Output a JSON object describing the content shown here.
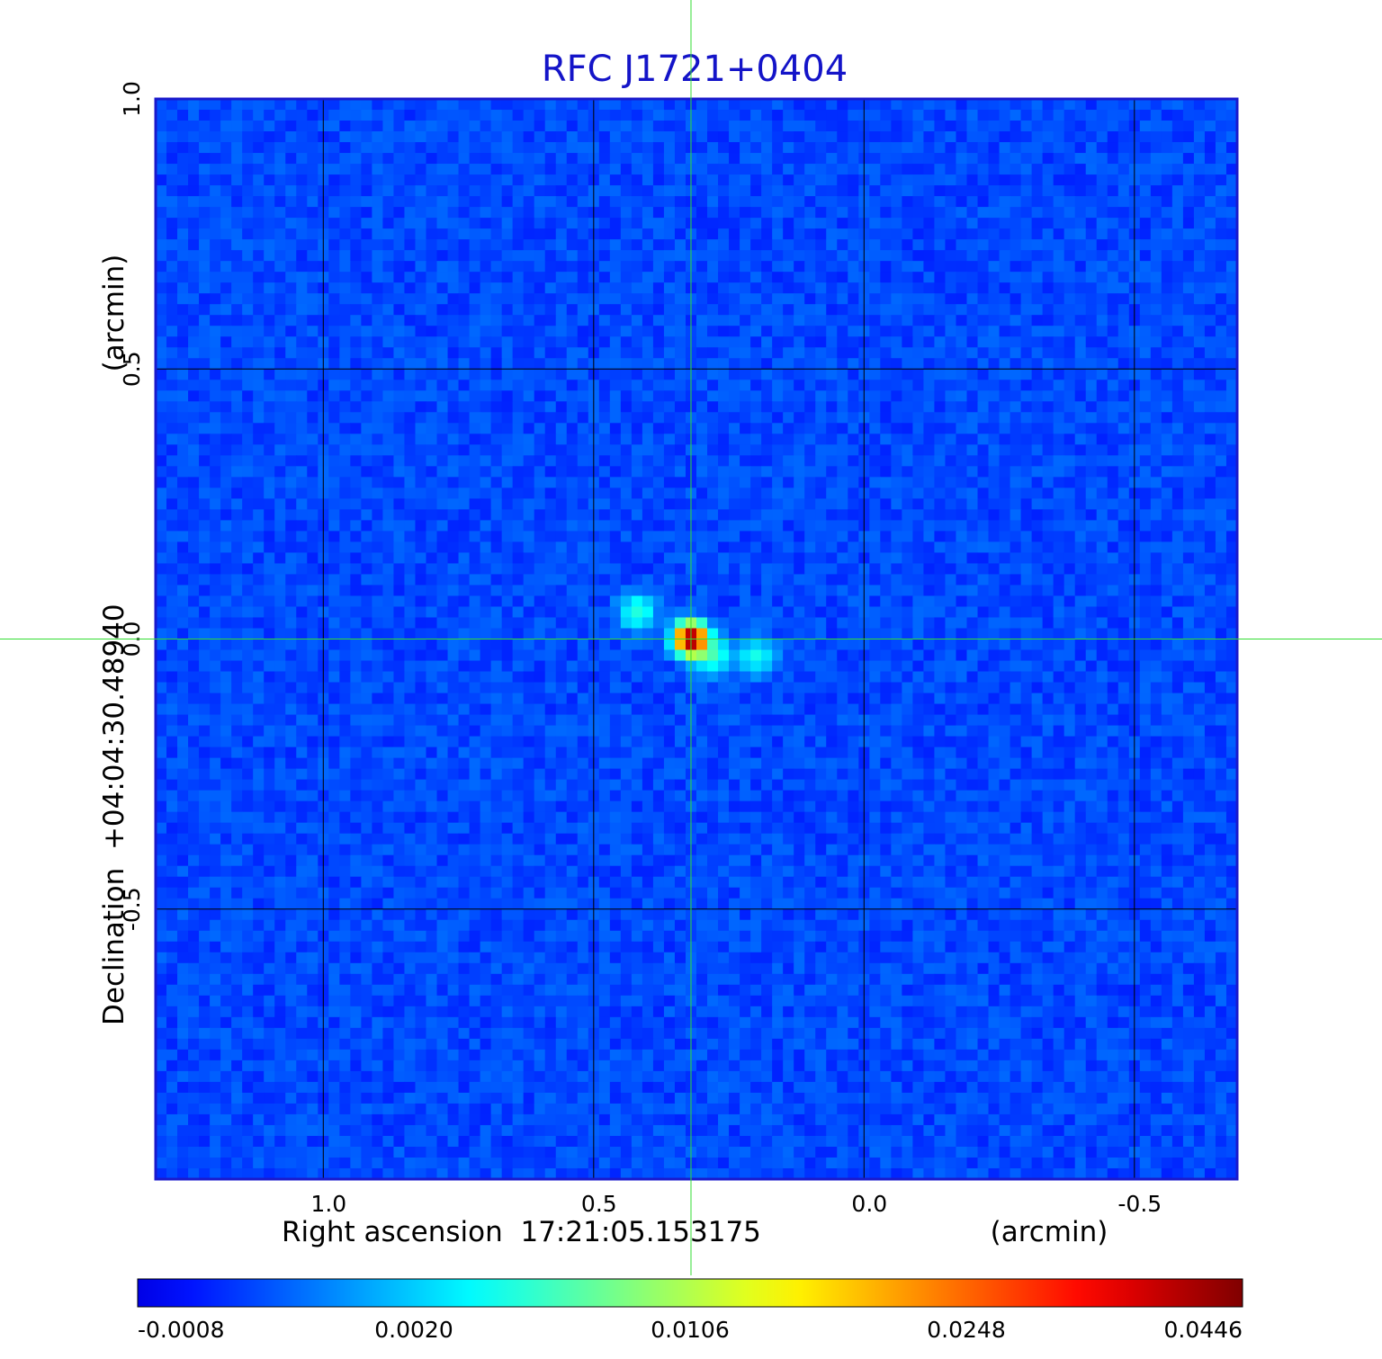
{
  "chart_data": {
    "type": "heatmap",
    "title": "RFC J1721+0404",
    "xlabel": "Right ascension  17:21:05.153175",
    "xlabel_unit": "(arcmin)",
    "ylabel": "Declination  +04:04:30.48940",
    "ylabel_unit": "(arcmin)",
    "x_ticks": [
      "1.0",
      "0.5",
      "0.0",
      "-0.5"
    ],
    "x_tick_values": [
      1.0,
      0.5,
      0.0,
      -0.5
    ],
    "y_ticks": [
      "1.0",
      "0.5",
      "0.0",
      "-0.5"
    ],
    "y_tick_values": [
      1.0,
      0.5,
      0.0,
      -0.5
    ],
    "xlim": [
      1.31,
      -0.69
    ],
    "ylim": [
      -1.0,
      1.0
    ],
    "grid": true,
    "crosshair": {
      "x": 0.32,
      "y": 0.0
    },
    "colormap": "jet",
    "colorbar": {
      "ticks": [
        "-0.0008",
        "0.0020",
        "0.0106",
        "0.0248",
        "0.0446"
      ],
      "tick_values": [
        -0.0008,
        0.002,
        0.0106,
        0.0248,
        0.0446
      ],
      "placement": "bottom"
    },
    "sources": [
      {
        "x": 0.32,
        "y": 0.0,
        "peak": 0.0446
      },
      {
        "x": 0.42,
        "y": 0.05,
        "peak": 0.006
      },
      {
        "x": 0.28,
        "y": -0.03,
        "peak": 0.006
      },
      {
        "x": 0.2,
        "y": -0.03,
        "peak": 0.005
      }
    ],
    "noise_level": 0.0005,
    "colors": {
      "title": "#1414c8",
      "crosshair": "#33dd33",
      "grid": "#000000",
      "frame": "#1a1acc"
    }
  }
}
